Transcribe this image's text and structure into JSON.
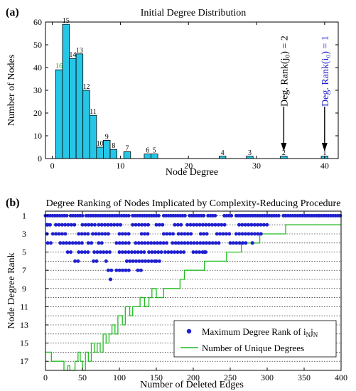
{
  "chart_data": [
    {
      "panel_label": "(a)",
      "type": "bar",
      "title": "Initial Degree Distribution",
      "xlabel": "Node Degree",
      "ylabel": "Number of Nodes",
      "xlim": [
        -1,
        42
      ],
      "ylim": [
        0,
        60
      ],
      "xticks": [
        0,
        10,
        20,
        30,
        40
      ],
      "yticks": [
        0,
        10,
        20,
        30,
        40,
        50,
        60
      ],
      "bar_color": "#26c6e6",
      "bars": [
        {
          "x0": 0.5,
          "x1": 1.5,
          "value": 39,
          "label": "16",
          "label_color": "#2ca02c"
        },
        {
          "x0": 1.5,
          "x1": 2.5,
          "value": 59,
          "label": "15"
        },
        {
          "x0": 2.5,
          "x1": 3.5,
          "value": 44,
          "label": "14"
        },
        {
          "x0": 3.5,
          "x1": 4.5,
          "value": 46,
          "label": "13"
        },
        {
          "x0": 4.5,
          "x1": 5.5,
          "value": 30,
          "label": "12"
        },
        {
          "x0": 5.5,
          "x1": 6.5,
          "value": 19,
          "label": "11"
        },
        {
          "x0": 6.5,
          "x1": 7.5,
          "value": 5,
          "label": "10"
        },
        {
          "x0": 7.5,
          "x1": 8.5,
          "value": 8,
          "label": "9"
        },
        {
          "x0": 8.5,
          "x1": 9.5,
          "value": 4,
          "label": "8"
        },
        {
          "x0": 10.5,
          "x1": 11.5,
          "value": 3,
          "label": "7"
        },
        {
          "x0": 13.5,
          "x1": 14.5,
          "value": 2,
          "label": "6"
        },
        {
          "x0": 14.5,
          "x1": 15.5,
          "value": 2,
          "label": "5"
        },
        {
          "x0": 24.5,
          "x1": 25.5,
          "value": 1,
          "label": "4"
        },
        {
          "x0": 28.5,
          "x1": 29.5,
          "value": 1,
          "label": "3"
        },
        {
          "x0": 33.5,
          "x1": 34.5,
          "value": 1,
          "label": "2"
        },
        {
          "x0": 39.5,
          "x1": 40.5,
          "value": 1,
          "label": "1"
        }
      ],
      "annotations": [
        {
          "text": "Deg. Rank(j₀) = 2",
          "x": 34,
          "color": "#000000"
        },
        {
          "text": "Deg. Rank(i₀) = 1",
          "x": 40,
          "color": "#1f1fd0"
        }
      ]
    },
    {
      "panel_label": "(b)",
      "type": "scatter",
      "title": "Degree Ranking of Nodes Implicated by Complexity-Reducing Procedure",
      "xlabel": "Number of Deleted Edges",
      "ylabel": "Node Degree Rank",
      "xlim": [
        0,
        400
      ],
      "ylim": [
        18,
        0.5
      ],
      "xticks": [
        0,
        50,
        100,
        150,
        200,
        250,
        300,
        350,
        400
      ],
      "yticks": [
        1,
        3,
        5,
        7,
        9,
        11,
        13,
        15,
        17
      ],
      "grid_rows": [
        1,
        2,
        3,
        4,
        5,
        6,
        7,
        8,
        9,
        10,
        11,
        12,
        13,
        14,
        15,
        16,
        17
      ],
      "scatter_color": "#1f1fd0",
      "line_color": "#22bb22",
      "scatter_ranges": {
        "1": [
          [
            0,
            30
          ],
          [
            34,
            50
          ],
          [
            55,
            115
          ],
          [
            118,
            155
          ],
          [
            160,
            190
          ],
          [
            195,
            215
          ],
          [
            220,
            232
          ],
          [
            242,
            252
          ],
          [
            258,
            318
          ],
          [
            322,
            400
          ]
        ],
        "2": [
          [
            2,
            10
          ],
          [
            14,
            42
          ],
          [
            50,
            70
          ],
          [
            72,
            105
          ],
          [
            118,
            140
          ],
          [
            150,
            162
          ],
          [
            175,
            186
          ],
          [
            192,
            245
          ],
          [
            262,
            300
          ]
        ],
        "3": [
          [
            2,
            4
          ],
          [
            10,
            30
          ],
          [
            45,
            60
          ],
          [
            64,
            85
          ],
          [
            100,
            115
          ],
          [
            130,
            140
          ],
          [
            160,
            175
          ],
          [
            180,
            200
          ],
          [
            210,
            222
          ],
          [
            232,
            250
          ],
          [
            258,
            295
          ]
        ],
        "4": [
          [
            3,
            10
          ],
          [
            20,
            50
          ],
          [
            58,
            65
          ],
          [
            72,
            80
          ],
          [
            96,
            116
          ],
          [
            122,
            168
          ],
          [
            172,
            180
          ],
          [
            180,
            235
          ],
          [
            250,
            272
          ]
        ],
        "5": [
          [
            30,
            38
          ],
          [
            45,
            60
          ],
          [
            66,
            90
          ],
          [
            100,
            135
          ],
          [
            140,
            160
          ],
          [
            162,
            190
          ],
          [
            200,
            220
          ]
        ],
        "6": [
          [
            40,
            45
          ],
          [
            65,
            70
          ],
          [
            82,
            85
          ],
          [
            110,
            148
          ],
          [
            150,
            155
          ]
        ],
        "7": [
          [
            85,
            90
          ],
          [
            96,
            116
          ],
          [
            125,
            130
          ]
        ],
        "8": [
          [
            88,
            90
          ]
        ]
      },
      "scatter_extra": [
        [
          325,
          1
        ],
        [
          370,
          1
        ],
        [
          3,
          2
        ],
        [
          280,
          4
        ],
        [
          215,
          5
        ]
      ],
      "unique_degrees_steps": [
        [
          0,
          16
        ],
        [
          8,
          16
        ],
        [
          8,
          17
        ],
        [
          25,
          17
        ],
        [
          25,
          18
        ],
        [
          30,
          18
        ],
        [
          30,
          17.5
        ],
        [
          33,
          17.5
        ],
        [
          33,
          18
        ],
        [
          40,
          18
        ],
        [
          40,
          17
        ],
        [
          44,
          17
        ],
        [
          44,
          16
        ],
        [
          47,
          16
        ],
        [
          47,
          17
        ],
        [
          50,
          17
        ],
        [
          50,
          18
        ],
        [
          54,
          18
        ],
        [
          54,
          16
        ],
        [
          58,
          16
        ],
        [
          58,
          17
        ],
        [
          62,
          17
        ],
        [
          62,
          15
        ],
        [
          66,
          15
        ],
        [
          66,
          16
        ],
        [
          70,
          16
        ],
        [
          70,
          15
        ],
        [
          74,
          15
        ],
        [
          74,
          16
        ],
        [
          78,
          16
        ],
        [
          78,
          14
        ],
        [
          82,
          14
        ],
        [
          82,
          15
        ],
        [
          86,
          15
        ],
        [
          86,
          14
        ],
        [
          90,
          14
        ],
        [
          90,
          13
        ],
        [
          94,
          13
        ],
        [
          94,
          14
        ],
        [
          98,
          14
        ],
        [
          98,
          12
        ],
        [
          104,
          12
        ],
        [
          104,
          13
        ],
        [
          108,
          13
        ],
        [
          108,
          11
        ],
        [
          114,
          11
        ],
        [
          114,
          12
        ],
        [
          118,
          12
        ],
        [
          118,
          11
        ],
        [
          128,
          11
        ],
        [
          128,
          10
        ],
        [
          134,
          10
        ],
        [
          134,
          11
        ],
        [
          140,
          11
        ],
        [
          140,
          10
        ],
        [
          144,
          10
        ],
        [
          144,
          9
        ],
        [
          150,
          9
        ],
        [
          150,
          10
        ],
        [
          160,
          10
        ],
        [
          160,
          9
        ],
        [
          182,
          9
        ],
        [
          182,
          8
        ],
        [
          188,
          8
        ],
        [
          188,
          7
        ],
        [
          215,
          7
        ],
        [
          215,
          6
        ],
        [
          245,
          6
        ],
        [
          245,
          5
        ],
        [
          265,
          5
        ],
        [
          265,
          4
        ],
        [
          290,
          4
        ],
        [
          290,
          3
        ],
        [
          325,
          3
        ],
        [
          325,
          2
        ],
        [
          400,
          2
        ]
      ],
      "legend": {
        "position": "lower-right",
        "entries": [
          {
            "marker": "dot",
            "label": "Maximum Degree Rank of i",
            "sub": "N",
            "label2": "j",
            "sub2": "N"
          },
          {
            "marker": "line",
            "label": "Number of Unique Degrees"
          }
        ]
      }
    }
  ]
}
